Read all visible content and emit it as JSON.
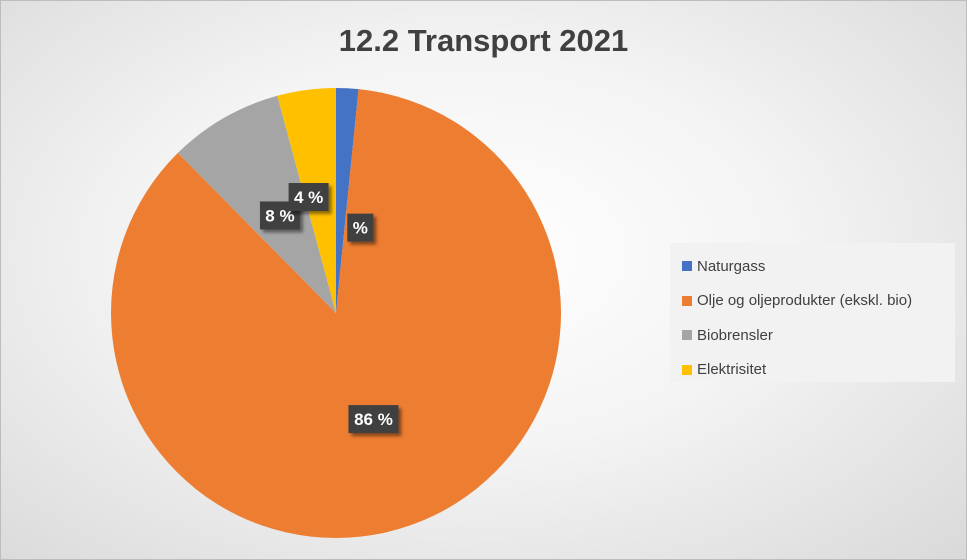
{
  "chart_data": {
    "type": "pie",
    "title": "12.2 Transport 2021",
    "categories": [
      "Naturgass",
      "Olje og oljeprodukter (ekskl. bio)",
      "Biobrensler",
      "Elektrisitet"
    ],
    "values": [
      1.6,
      86.0,
      8.2,
      4.2
    ],
    "data_labels": [
      "%",
      "86 %",
      "8 %",
      "4 %"
    ],
    "colors": [
      "#4472c4",
      "#ed7d31",
      "#a5a5a5",
      "#ffc000"
    ],
    "legend_position": "right"
  }
}
